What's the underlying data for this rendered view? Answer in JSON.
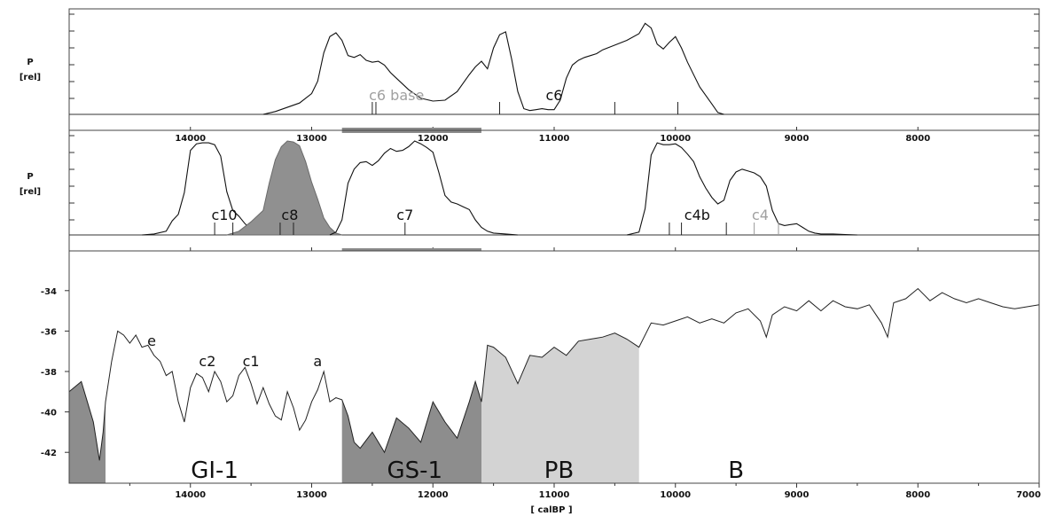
{
  "chart_data": [
    {
      "type": "area",
      "panel": "top",
      "ylabel": "P",
      "ylabel_unit": "[rel]",
      "x_ticks": [
        14000,
        13000,
        12000,
        11000,
        10000,
        9000,
        8000
      ],
      "x_tick_labels": [
        "14000",
        "13000",
        "12000",
        "11000",
        "10000",
        "9000",
        "8000"
      ],
      "xlim": [
        15000,
        7000
      ],
      "series": [
        {
          "x": [
            13400,
            13300,
            13100,
            13000,
            12950,
            12900,
            12850,
            12800,
            12750,
            12700,
            12650,
            12600,
            12550,
            12500,
            12450,
            12400,
            12350,
            12300,
            12200,
            12100,
            12000,
            11900,
            11800,
            11700,
            11650,
            11600,
            11550,
            11500,
            11450,
            11400,
            11350,
            11300,
            11250,
            11200,
            11150,
            11100,
            11050,
            11000,
            10950,
            10900,
            10850,
            10800,
            10750,
            10700,
            10650,
            10600,
            10500,
            10400,
            10300,
            10250,
            10200,
            10150,
            10100,
            10050,
            10000,
            9950,
            9900,
            9800,
            9700,
            9650,
            9600
          ],
          "y": [
            0,
            0.03,
            0.12,
            0.22,
            0.35,
            0.65,
            0.82,
            0.86,
            0.78,
            0.62,
            0.6,
            0.63,
            0.57,
            0.55,
            0.56,
            0.52,
            0.44,
            0.38,
            0.26,
            0.17,
            0.14,
            0.15,
            0.24,
            0.42,
            0.5,
            0.56,
            0.48,
            0.7,
            0.84,
            0.87,
            0.58,
            0.24,
            0.06,
            0.04,
            0.05,
            0.06,
            0.05,
            0.05,
            0.15,
            0.38,
            0.52,
            0.57,
            0.6,
            0.62,
            0.64,
            0.68,
            0.73,
            0.78,
            0.85,
            0.96,
            0.91,
            0.74,
            0.69,
            0.76,
            0.82,
            0.7,
            0.55,
            0.29,
            0.11,
            0.02,
            0
          ]
        }
      ],
      "markers": [
        12500,
        12470,
        11450,
        10500,
        9980
      ],
      "annotations": [
        {
          "text": "c6 base",
          "x": 12300,
          "color": "#a0a0a0"
        },
        {
          "text": "c6",
          "x": 11000,
          "color": "#111111"
        }
      ],
      "bracket": [
        12750,
        11600
      ]
    },
    {
      "type": "area",
      "panel": "middle",
      "ylabel": "P",
      "ylabel_unit": "[rel]",
      "x_ticks": [
        14000,
        13000,
        12000,
        11000,
        10000,
        9000,
        8000
      ],
      "x_tick_labels": [
        "14000",
        "13000",
        "12000",
        "11000",
        "10000",
        "9000",
        "8000"
      ],
      "xlim": [
        15000,
        7000
      ],
      "series": [
        {
          "x": [
            14400,
            14300,
            14200,
            14150,
            14100,
            14050,
            14000,
            13950,
            13900,
            13850,
            13800,
            13750,
            13700,
            13650,
            13600,
            13550,
            13500,
            13450,
            13400
          ],
          "y": [
            0,
            0.01,
            0.04,
            0.15,
            0.22,
            0.45,
            0.9,
            0.97,
            0.98,
            0.98,
            0.96,
            0.84,
            0.46,
            0.26,
            0.2,
            0.12,
            0.06,
            0.02,
            0
          ]
        },
        {
          "x": [
            13700,
            13600,
            13500,
            13400,
            13350,
            13300,
            13250,
            13200,
            13150,
            13100,
            13050,
            13000,
            12950,
            12900,
            12850,
            12800,
            12750
          ],
          "y": [
            0,
            0.04,
            0.14,
            0.26,
            0.55,
            0.8,
            0.94,
            1.0,
            0.99,
            0.95,
            0.78,
            0.56,
            0.38,
            0.18,
            0.08,
            0.02,
            0
          ],
          "filled": true
        },
        {
          "x": [
            12850,
            12800,
            12750,
            12700,
            12650,
            12600,
            12550,
            12500,
            12450,
            12400,
            12350,
            12300,
            12250,
            12200,
            12150,
            12100,
            12050,
            12000,
            11950,
            11900,
            11850,
            11800,
            11750,
            11700,
            11650,
            11600,
            11550,
            11500,
            11400,
            11300
          ],
          "y": [
            0,
            0.03,
            0.16,
            0.55,
            0.7,
            0.77,
            0.78,
            0.74,
            0.79,
            0.87,
            0.92,
            0.89,
            0.9,
            0.94,
            1.0,
            0.97,
            0.93,
            0.88,
            0.66,
            0.42,
            0.35,
            0.33,
            0.3,
            0.27,
            0.16,
            0.08,
            0.04,
            0.02,
            0.01,
            0
          ]
        },
        {
          "x": [
            10400,
            10300,
            10250,
            10200,
            10150,
            10100,
            10050,
            10000,
            9950,
            9900,
            9850,
            9800,
            9750,
            9700,
            9650,
            9600,
            9550,
            9500,
            9450,
            9400,
            9350,
            9300,
            9250,
            9200,
            9150,
            9100,
            9050,
            9000,
            8950,
            8900,
            8850,
            8800,
            8700,
            8600,
            8500
          ],
          "y": [
            0,
            0.03,
            0.28,
            0.85,
            0.98,
            0.96,
            0.96,
            0.97,
            0.93,
            0.86,
            0.78,
            0.62,
            0.5,
            0.4,
            0.33,
            0.37,
            0.58,
            0.67,
            0.7,
            0.68,
            0.66,
            0.62,
            0.52,
            0.26,
            0.12,
            0.1,
            0.11,
            0.12,
            0.08,
            0.04,
            0.02,
            0.01,
            0.01,
            0.005,
            0
          ]
        }
      ],
      "markers": [
        13800,
        13650,
        13260,
        13150,
        12230,
        10050,
        9950,
        9580
      ],
      "grey_markers": [
        9350,
        9150
      ],
      "annotations": [
        {
          "text": "c10",
          "x": 13720,
          "color": "#111111"
        },
        {
          "text": "c8",
          "x": 13180,
          "color": "#111111"
        },
        {
          "text": "c7",
          "x": 12230,
          "color": "#111111"
        },
        {
          "text": "c4b",
          "x": 9820,
          "color": "#111111"
        },
        {
          "text": "c4",
          "x": 9300,
          "color": "#a0a0a0"
        }
      ],
      "bracket": [
        12750,
        11600
      ]
    },
    {
      "type": "line",
      "panel": "bottom",
      "xlabel": "[ calBP ]",
      "xlim": [
        15000,
        7000
      ],
      "ylim": [
        -43,
        -33
      ],
      "y_ticks": [
        -34,
        -36,
        -38,
        -40,
        -42
      ],
      "y_tick_labels": [
        "-34",
        "-36",
        "-38",
        "-40",
        "-42"
      ],
      "x_ticks": [
        14000,
        13000,
        12000,
        11000,
        10000,
        9000,
        8000,
        7000
      ],
      "x_tick_labels": [
        "14000",
        "13000",
        "12000",
        "11000",
        "10000",
        "9000",
        "8000",
        "7000"
      ],
      "series": [
        {
          "x": [
            15000,
            14900,
            14850,
            14800,
            14750,
            14720,
            14700,
            14650,
            14600,
            14550,
            14500,
            14450,
            14400,
            14350,
            14300,
            14250,
            14200,
            14150,
            14100,
            14050,
            14000,
            13950,
            13900,
            13850,
            13800,
            13750,
            13700,
            13650,
            13600,
            13550,
            13500,
            13450,
            13400,
            13350,
            13300,
            13250,
            13200,
            13150,
            13100,
            13050,
            13000,
            12950,
            12900,
            12850,
            12800,
            12750,
            12700,
            12650,
            12600,
            12500,
            12400,
            12300,
            12200,
            12100,
            12000,
            11900,
            11800,
            11700,
            11650,
            11600,
            11550,
            11500,
            11400,
            11300,
            11200,
            11100,
            11000,
            10900,
            10800,
            10700,
            10600,
            10500,
            10400,
            10300,
            10200,
            10100,
            10000,
            9900,
            9800,
            9700,
            9600,
            9500,
            9400,
            9300,
            9250,
            9200,
            9100,
            9000,
            8900,
            8800,
            8700,
            8600,
            8500,
            8400,
            8300,
            8250,
            8200,
            8100,
            8000,
            7900,
            7800,
            7700,
            7600,
            7500,
            7400,
            7300,
            7200,
            7100,
            7000
          ],
          "y": [
            -39,
            -38.5,
            -39.5,
            -40.5,
            -42.4,
            -41,
            -39.5,
            -37.5,
            -36,
            -36.2,
            -36.6,
            -36.2,
            -36.8,
            -36.7,
            -37.2,
            -37.5,
            -38.2,
            -38,
            -39.5,
            -40.5,
            -38.8,
            -38.1,
            -38.3,
            -39,
            -38,
            -38.5,
            -39.5,
            -39.2,
            -38.2,
            -37.8,
            -38.6,
            -39.6,
            -38.8,
            -39.6,
            -40.2,
            -40.4,
            -39,
            -39.8,
            -40.9,
            -40.4,
            -39.5,
            -38.9,
            -38,
            -39.5,
            -39.3,
            -39.4,
            -40.2,
            -41.5,
            -41.8,
            -41,
            -42,
            -40.3,
            -40.8,
            -41.5,
            -39.5,
            -40.5,
            -41.3,
            -39.5,
            -38.5,
            -39.5,
            -36.7,
            -36.8,
            -37.3,
            -38.6,
            -37.2,
            -37.3,
            -36.8,
            -37.2,
            -36.5,
            -36.4,
            -36.3,
            -36.1,
            -36.4,
            -36.8,
            -35.6,
            -35.7,
            -35.5,
            -35.3,
            -35.6,
            -35.4,
            -35.6,
            -35.1,
            -34.9,
            -35.5,
            -36.3,
            -35.2,
            -34.8,
            -35,
            -34.5,
            -35,
            -34.5,
            -34.8,
            -34.9,
            -34.7,
            -35.6,
            -36.3,
            -34.6,
            -34.4,
            -33.9,
            -34.5,
            -34.1,
            -34.4,
            -34.6,
            -34.4,
            -34.6,
            -34.8,
            -34.9,
            -34.8,
            -34.7
          ]
        }
      ],
      "zones": [
        {
          "label": "GI-1",
          "from": 14700,
          "to": 12750,
          "fill": "#ffffff"
        },
        {
          "label": "GS-1",
          "from": 12750,
          "to": 11600,
          "fill": "#8d8d8d"
        },
        {
          "label": "PB",
          "from": 11600,
          "to": 10300,
          "fill": "#d3d3d3"
        },
        {
          "label": "B",
          "from": 10300,
          "to": 7000,
          "fill": "#ffffff"
        }
      ],
      "early_shade": {
        "from": 15000,
        "to": 14700,
        "fill": "#8d8d8d"
      },
      "annotations": [
        {
          "text": "e",
          "x": 14320,
          "y": -37.0
        },
        {
          "text": "c2",
          "x": 13860,
          "y": -38.0
        },
        {
          "text": "c1",
          "x": 13500,
          "y": -38.0
        },
        {
          "text": "a",
          "x": 12950,
          "y": -38.0
        }
      ]
    }
  ]
}
